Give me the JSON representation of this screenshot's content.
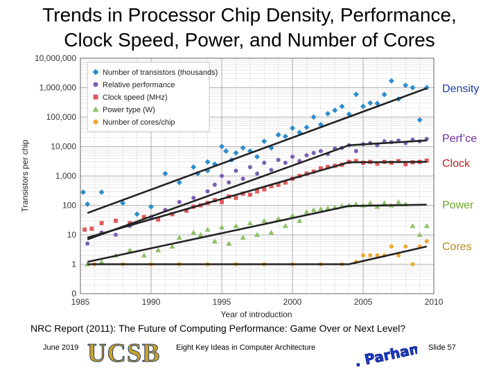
{
  "title_line1": "Trends in Processor Chip Density, Performance,",
  "title_line2": "Clock Speed, Power, and Number of Cores",
  "right_labels": {
    "density": "Density",
    "perf": "Perf’ce",
    "clock": "Clock",
    "power": "Power",
    "cores": "Cores"
  },
  "caption": "NRC Report (2011): The Future of Computing Performance: Game Over or Next Level?",
  "footer": {
    "date": "June 2019",
    "logo_text": "UCSB",
    "center": "Eight Key Ideas in Computer Architecture",
    "signature": "B. Parhami",
    "slide": "Slide 57"
  },
  "colors": {
    "transistors": "#2e8ccc",
    "performance": "#7a5fb5",
    "clock": "#e05a5a",
    "power": "#8cc063",
    "cores": "#f0a830",
    "trend": "#222222"
  },
  "chart_data": {
    "type": "scatter",
    "title": "",
    "xlabel": "Year of introduction",
    "ylabel": "Transistors per chip",
    "xlim": [
      1985,
      2010
    ],
    "ylim": [
      0.1,
      10000000
    ],
    "yscale": "log",
    "x_ticks": [
      1985,
      1990,
      1995,
      2000,
      2005,
      2010
    ],
    "y_ticks": [
      {
        "value": 10000000,
        "label": "10,000,000"
      },
      {
        "value": 1000000,
        "label": "1,000,000"
      },
      {
        "value": 100000,
        "label": "100,000"
      },
      {
        "value": 10000,
        "label": "10,000"
      },
      {
        "value": 1000,
        "label": "1,000"
      },
      {
        "value": 100,
        "label": "100"
      },
      {
        "value": 10,
        "label": "10"
      },
      {
        "value": 1,
        "label": "1"
      },
      {
        "value": 0.1,
        "label": "0"
      }
    ],
    "legend_position": "top-left",
    "series": [
      {
        "name": "Number of transistors (thousands)",
        "key": "transistors",
        "marker": "diamond",
        "points": [
          [
            1985.2,
            280
          ],
          [
            1985.5,
            110
          ],
          [
            1986.5,
            280
          ],
          [
            1988,
            120
          ],
          [
            1989,
            50
          ],
          [
            1990,
            90
          ],
          [
            1991,
            1200
          ],
          [
            1992,
            600
          ],
          [
            1993,
            2000
          ],
          [
            1993.3,
            1200
          ],
          [
            1994,
            3000
          ],
          [
            1994,
            1500
          ],
          [
            1994.5,
            2500
          ],
          [
            1995,
            10000
          ],
          [
            1995.3,
            7000
          ],
          [
            1995.7,
            3500
          ],
          [
            1996,
            6000
          ],
          [
            1996.5,
            9000
          ],
          [
            1997,
            7000
          ],
          [
            1997.5,
            4500
          ],
          [
            1998,
            15000
          ],
          [
            1998.5,
            9000
          ],
          [
            1999,
            25000
          ],
          [
            1999.5,
            22000
          ],
          [
            2000,
            42000
          ],
          [
            2000.5,
            30000
          ],
          [
            2001,
            45000
          ],
          [
            2001.5,
            100000
          ],
          [
            2002,
            55000
          ],
          [
            2002.5,
            130000
          ],
          [
            2003,
            170000
          ],
          [
            2003.5,
            230000
          ],
          [
            2004,
            125000
          ],
          [
            2004.5,
            590000
          ],
          [
            2005,
            230000
          ],
          [
            2005.5,
            300000
          ],
          [
            2006,
            290000
          ],
          [
            2006.5,
            580000
          ],
          [
            2007,
            1700000
          ],
          [
            2007.5,
            410000
          ],
          [
            2008,
            1200000
          ],
          [
            2008.5,
            1000000
          ],
          [
            2009,
            80000
          ],
          [
            2009.5,
            1000000
          ]
        ],
        "trend": [
          [
            1985.5,
            55
          ],
          [
            2009.5,
            950000
          ]
        ]
      },
      {
        "name": "Relative performance",
        "key": "performance",
        "marker": "circle",
        "points": [
          [
            1985.5,
            5
          ],
          [
            1986.5,
            12
          ],
          [
            1987.5,
            10
          ],
          [
            1988.5,
            20
          ],
          [
            1990,
            40
          ],
          [
            1991,
            70
          ],
          [
            1992,
            130
          ],
          [
            1993,
            180
          ],
          [
            1994,
            300
          ],
          [
            1994.5,
            500
          ],
          [
            1995,
            1000
          ],
          [
            1995.5,
            600
          ],
          [
            1996,
            1500
          ],
          [
            1996.5,
            800
          ],
          [
            1997,
            2000
          ],
          [
            1997.5,
            1200
          ],
          [
            1998,
            2800
          ],
          [
            1998.5,
            1600
          ],
          [
            1999,
            3500
          ],
          [
            1999.5,
            2800
          ],
          [
            2000,
            4500
          ],
          [
            2000.5,
            3200
          ],
          [
            2001,
            5000
          ],
          [
            2001.5,
            6000
          ],
          [
            2002,
            7000
          ],
          [
            2002.5,
            5500
          ],
          [
            2003,
            8500
          ],
          [
            2003.5,
            9000
          ],
          [
            2004,
            11000
          ],
          [
            2004.5,
            7000
          ],
          [
            2005,
            12000
          ],
          [
            2005.5,
            13000
          ],
          [
            2006,
            11000
          ],
          [
            2006.5,
            15000
          ],
          [
            2007,
            14000
          ],
          [
            2007.5,
            16000
          ],
          [
            2008,
            13000
          ],
          [
            2008.5,
            17000
          ],
          [
            2009,
            15000
          ],
          [
            2009.5,
            18000
          ]
        ],
        "trend": [
          [
            1985.5,
            7
          ],
          [
            2004,
            11000
          ],
          [
            2009.5,
            16000
          ]
        ]
      },
      {
        "name": "Clock speed (MHz)",
        "key": "clock",
        "marker": "square",
        "points": [
          [
            1985.3,
            15
          ],
          [
            1985.8,
            16
          ],
          [
            1986.5,
            25
          ],
          [
            1987.5,
            30
          ],
          [
            1988.5,
            25
          ],
          [
            1989.5,
            40
          ],
          [
            1990.5,
            33
          ],
          [
            1991.5,
            50
          ],
          [
            1992.5,
            66
          ],
          [
            1993,
            90
          ],
          [
            1993.5,
            100
          ],
          [
            1994,
            120
          ],
          [
            1994.5,
            150
          ],
          [
            1995,
            130
          ],
          [
            1995.5,
            200
          ],
          [
            1996,
            180
          ],
          [
            1996.5,
            250
          ],
          [
            1997,
            230
          ],
          [
            1997.5,
            300
          ],
          [
            1998,
            350
          ],
          [
            1998.5,
            450
          ],
          [
            1999,
            500
          ],
          [
            1999.5,
            600
          ],
          [
            2000,
            800
          ],
          [
            2000.5,
            1000
          ],
          [
            2001,
            1200
          ],
          [
            2001.5,
            1400
          ],
          [
            2002,
            1800
          ],
          [
            2002.5,
            2000
          ],
          [
            2003,
            2200
          ],
          [
            2003.5,
            2400
          ],
          [
            2004,
            3000
          ],
          [
            2004.5,
            3200
          ],
          [
            2005,
            2800
          ],
          [
            2005.5,
            3000
          ],
          [
            2006,
            2600
          ],
          [
            2006.5,
            3000
          ],
          [
            2007,
            2800
          ],
          [
            2007.5,
            3200
          ],
          [
            2008,
            2500
          ],
          [
            2008.5,
            2900
          ],
          [
            2009,
            3000
          ],
          [
            2009.5,
            3300
          ]
        ],
        "trend": [
          [
            1985.5,
            8
          ],
          [
            2004,
            2900
          ],
          [
            2009.5,
            3000
          ]
        ]
      },
      {
        "name": "Power type (W)",
        "key": "power",
        "marker": "triangle",
        "points": [
          [
            1985.5,
            1
          ],
          [
            1986.5,
            1.2
          ],
          [
            1987.5,
            2
          ],
          [
            1988.5,
            3
          ],
          [
            1989.5,
            2
          ],
          [
            1990.5,
            3
          ],
          [
            1991.5,
            4
          ],
          [
            1992,
            8
          ],
          [
            1993,
            12
          ],
          [
            1993.5,
            10
          ],
          [
            1994,
            15
          ],
          [
            1994.5,
            6
          ],
          [
            1995,
            18
          ],
          [
            1995.5,
            5
          ],
          [
            1996,
            20
          ],
          [
            1996.5,
            8
          ],
          [
            1997,
            25
          ],
          [
            1997.5,
            10
          ],
          [
            1998,
            30
          ],
          [
            1998.5,
            12
          ],
          [
            1999,
            35
          ],
          [
            1999.5,
            20
          ],
          [
            2000,
            45
          ],
          [
            2000.5,
            30
          ],
          [
            2001,
            60
          ],
          [
            2001.5,
            70
          ],
          [
            2002,
            75
          ],
          [
            2002.5,
            80
          ],
          [
            2003,
            85
          ],
          [
            2003.5,
            95
          ],
          [
            2004,
            100
          ],
          [
            2004.5,
            110
          ],
          [
            2005,
            100
          ],
          [
            2005.5,
            120
          ],
          [
            2006,
            90
          ],
          [
            2006.5,
            120
          ],
          [
            2007,
            100
          ],
          [
            2007.5,
            130
          ],
          [
            2008,
            110
          ],
          [
            2008.5,
            20
          ],
          [
            2009,
            10
          ],
          [
            2009.5,
            20
          ]
        ],
        "trend": [
          [
            1985.5,
            1.2
          ],
          [
            2004,
            95
          ],
          [
            2009.5,
            105
          ]
        ]
      },
      {
        "name": "Number of cores/chip",
        "key": "cores",
        "marker": "circle",
        "points": [
          [
            1986,
            1
          ],
          [
            1988,
            1
          ],
          [
            1990,
            1
          ],
          [
            1992,
            1
          ],
          [
            1994,
            1
          ],
          [
            1996,
            1
          ],
          [
            1998,
            1
          ],
          [
            2000,
            1
          ],
          [
            2002,
            1
          ],
          [
            2003.5,
            1
          ],
          [
            2004.5,
            1.2
          ],
          [
            2005,
            2
          ],
          [
            2005.5,
            2
          ],
          [
            2006,
            2
          ],
          [
            2006.5,
            2
          ],
          [
            2007,
            4
          ],
          [
            2007.5,
            2
          ],
          [
            2008,
            4
          ],
          [
            2008.5,
            1
          ],
          [
            2009,
            4
          ],
          [
            2009.5,
            6
          ]
        ],
        "trend": [
          [
            1985.5,
            1
          ],
          [
            2004,
            1
          ],
          [
            2009.5,
            4
          ]
        ]
      }
    ]
  }
}
